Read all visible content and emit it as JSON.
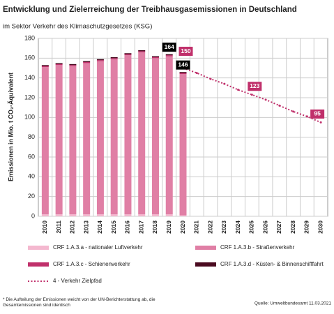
{
  "chart_data": {
    "type": "bar",
    "title": "Entwicklung und Zielerreichung der Treibhausgasemissionen in Deutschland",
    "subtitle": "im Sektor Verkehr des Klimaschutzgesetzes (KSG)",
    "y_label": "Emissionen in Mio. t CO₂-Äquivalent",
    "categories": [
      "2010",
      "2011",
      "2012",
      "2013",
      "2014",
      "2015",
      "2016",
      "2017",
      "2018",
      "2019",
      "2020",
      "2021",
      "2022",
      "2023",
      "2024",
      "2025",
      "2026",
      "2027",
      "2028",
      "2029",
      "2030"
    ],
    "ylim": [
      0,
      180
    ],
    "yticks": [
      0,
      20,
      40,
      60,
      80,
      100,
      120,
      140,
      160,
      180
    ],
    "grid": true,
    "series": [
      {
        "name": "CRF 1.A.3.a - nationaler Luftverkehr",
        "color": "#f4b8cf",
        "values": [
          2,
          2,
          2,
          2,
          2,
          2,
          2,
          2,
          2,
          2,
          1,
          null,
          null,
          null,
          null,
          null,
          null,
          null,
          null,
          null,
          null
        ]
      },
      {
        "name": "CRF 1.A.3.b - Straßenverkehr",
        "color": "#e07fa5",
        "values": [
          149,
          151,
          150,
          153,
          155,
          157,
          161,
          164,
          158,
          160,
          143,
          null,
          null,
          null,
          null,
          null,
          null,
          null,
          null,
          null,
          null
        ]
      },
      {
        "name": "CRF 1.A.3.c - Schienenverkehr",
        "color": "#c0306b",
        "values": [
          1,
          1,
          1,
          1,
          1,
          1,
          1,
          1,
          1,
          1,
          1,
          null,
          null,
          null,
          null,
          null,
          null,
          null,
          null,
          null,
          null
        ]
      },
      {
        "name": "CRF 1.A.3.d - Küsten- & Binnenschifffahrt",
        "color": "#4a0a20",
        "values": [
          1,
          1,
          1,
          1,
          1,
          1,
          1,
          1,
          1,
          1,
          1,
          null,
          null,
          null,
          null,
          null,
          null,
          null,
          null,
          null,
          null
        ]
      },
      {
        "name": "4 - Verkehr Zielpfad",
        "type": "line",
        "color": "#c0306b",
        "values": [
          null,
          null,
          null,
          null,
          null,
          null,
          null,
          null,
          null,
          null,
          150,
          145,
          139,
          134,
          128,
          123,
          118,
          112,
          106,
          101,
          95
        ],
        "value_labels": [
          null,
          null,
          null,
          null,
          null,
          null,
          null,
          null,
          null,
          null,
          "150",
          null,
          null,
          null,
          null,
          "123",
          null,
          null,
          null,
          null,
          "95"
        ]
      }
    ],
    "annotations": [
      {
        "text": "164",
        "category": "2019"
      },
      {
        "text": "146",
        "category": "2020"
      }
    ],
    "footnote": "* Die Aufteilung der Emissionen weicht von der UN-Berichterstattung ab, die Gesamtemissionen sind identisch",
    "source": "Quelle: Umweltbundesamt 11.03.2021"
  }
}
